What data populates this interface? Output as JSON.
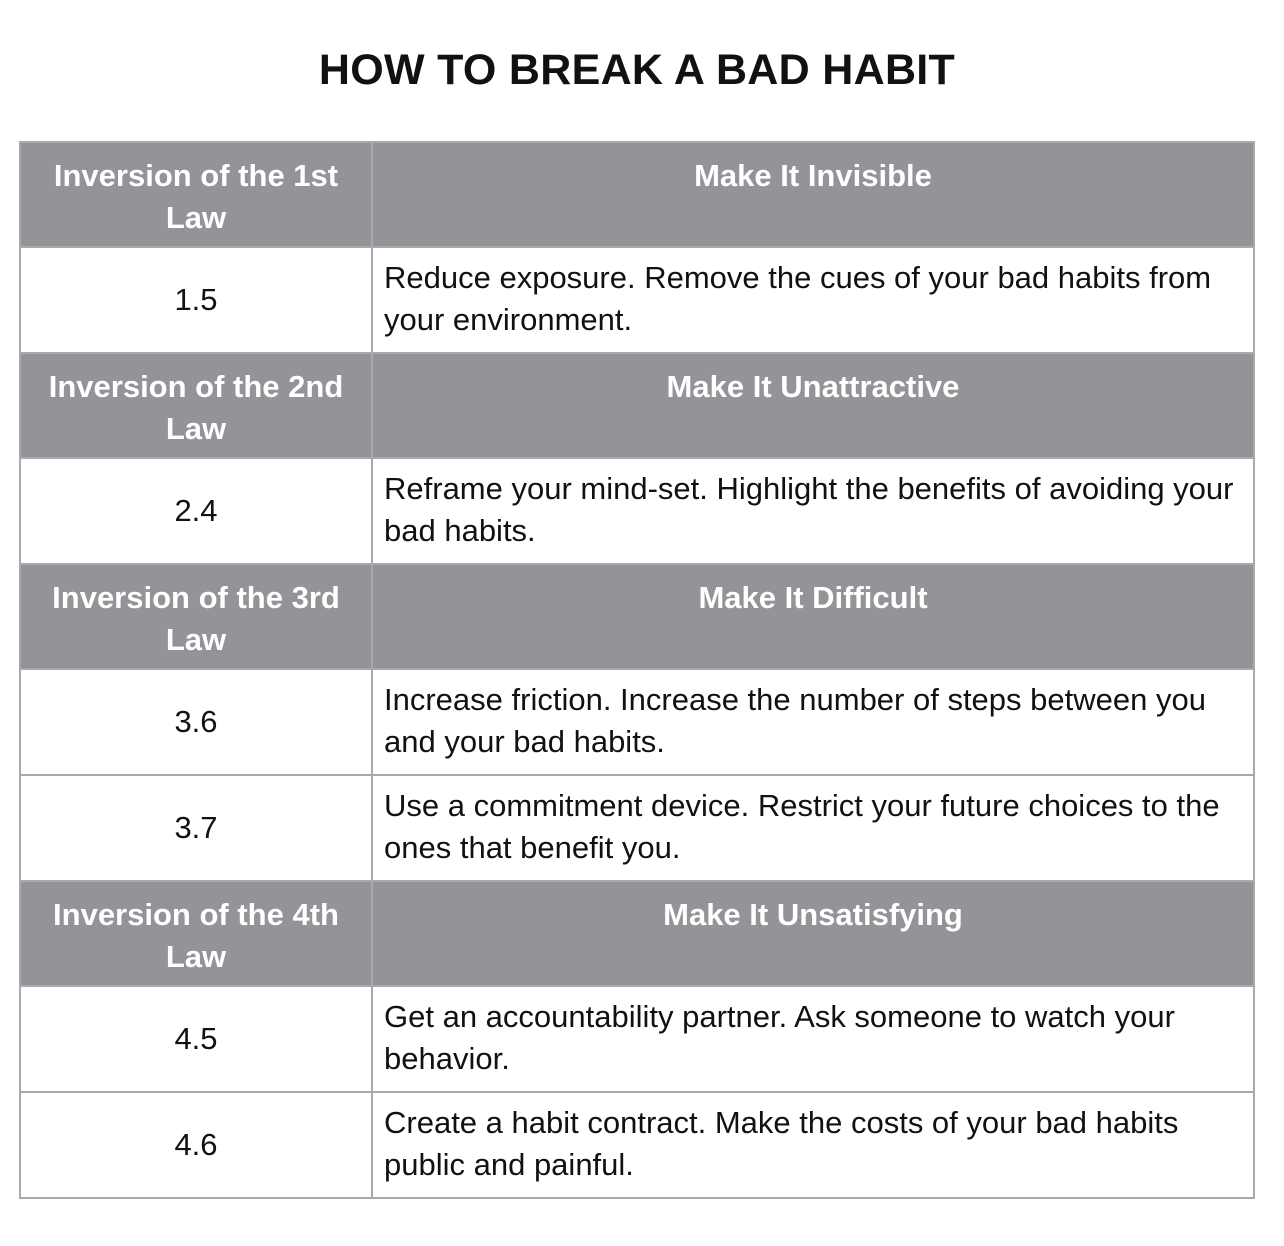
{
  "title": "HOW TO BREAK A BAD HABIT",
  "sections": [
    {
      "law": "Inversion of the 1st Law",
      "heading": "Make It Invisible",
      "items": [
        {
          "number": "1.5",
          "text": "Reduce exposure. Remove the cues of your bad habits from your environment."
        }
      ]
    },
    {
      "law": "Inversion of the 2nd Law",
      "heading": "Make It Unattractive",
      "items": [
        {
          "number": "2.4",
          "text": "Reframe your mind-set. Highlight the benefits of avoiding your bad habits."
        }
      ]
    },
    {
      "law": "Inversion of the 3rd Law",
      "heading": "Make It Difficult",
      "items": [
        {
          "number": "3.6",
          "text": "Increase friction. Increase the number of steps between you and your bad habits."
        },
        {
          "number": "3.7",
          "text": "Use a commitment device. Restrict your future choices to the ones that benefit you."
        }
      ]
    },
    {
      "law": "Inversion of the 4th Law",
      "heading": "Make It Unsatisfying",
      "items": [
        {
          "number": "4.5",
          "text": "Get an accountability partner. Ask someone to watch your behavior."
        },
        {
          "number": "4.6",
          "text": "Create a habit contract. Make the costs of your bad habits public and painful."
        }
      ]
    }
  ],
  "colors": {
    "header_background": "#939498",
    "header_text": "#ffffff",
    "border": "#a9a9ad",
    "body_text": "#111111"
  }
}
